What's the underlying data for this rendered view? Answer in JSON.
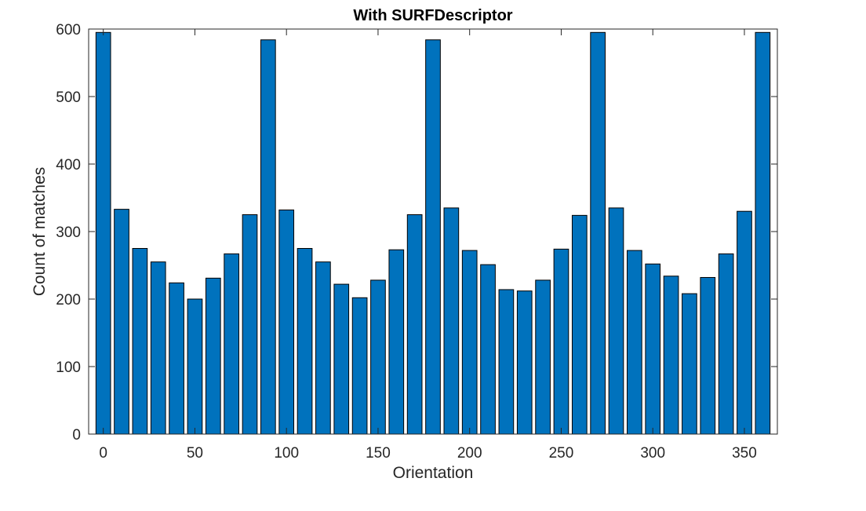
{
  "chart_data": {
    "type": "bar",
    "title": "With SURFDescriptor",
    "xlabel": "Orientation",
    "ylabel": "Count of matches",
    "x": [
      0,
      10,
      20,
      30,
      40,
      50,
      60,
      70,
      80,
      90,
      100,
      110,
      120,
      130,
      140,
      150,
      160,
      170,
      180,
      190,
      200,
      210,
      220,
      230,
      240,
      250,
      260,
      270,
      280,
      290,
      300,
      310,
      320,
      330,
      340,
      350,
      360
    ],
    "values": [
      595,
      333,
      275,
      255,
      224,
      200,
      231,
      267,
      325,
      584,
      332,
      275,
      255,
      222,
      202,
      228,
      273,
      325,
      584,
      335,
      272,
      251,
      214,
      212,
      228,
      274,
      324,
      595,
      335,
      272,
      252,
      234,
      208,
      232,
      267,
      330,
      595
    ],
    "xlim": [
      -8,
      368
    ],
    "ylim": [
      0,
      600
    ],
    "xticks": [
      0,
      50,
      100,
      150,
      200,
      250,
      300,
      350
    ],
    "yticks": [
      0,
      100,
      200,
      300,
      400,
      500,
      600
    ],
    "bar_color": "#0072BD",
    "edge_color": "#000000",
    "grid": false,
    "box": true
  }
}
